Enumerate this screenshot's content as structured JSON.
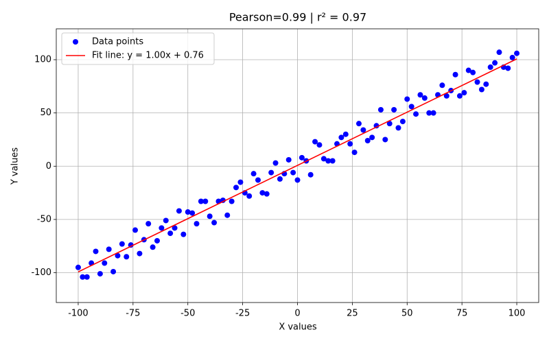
{
  "chart_data": {
    "type": "scatter",
    "title": "Pearson=0.99 | r² = 0.97",
    "xlabel": "X values",
    "ylabel": "Y values",
    "xlim": [
      -110,
      110
    ],
    "ylim": [
      -128,
      129
    ],
    "xticks": [
      -100,
      -75,
      -50,
      -25,
      0,
      25,
      50,
      75,
      100
    ],
    "yticks": [
      -100,
      -50,
      0,
      50,
      100
    ],
    "grid": true,
    "legend": "upper left",
    "series": [
      {
        "name": "Data points",
        "type": "scatter",
        "color": "#0000ff",
        "x": [
          -100,
          -96,
          -92,
          -88,
          -84,
          -80,
          -76,
          -72,
          -68,
          -64,
          -60,
          -56,
          -52,
          -48,
          -44,
          -40,
          -36,
          -32,
          -28,
          -24,
          -20,
          -16,
          -12,
          -8,
          -4,
          0,
          4,
          8,
          12,
          16,
          20,
          24,
          28,
          32,
          36,
          40,
          44,
          48,
          52,
          56,
          60,
          64,
          68,
          72,
          76,
          80,
          84,
          88,
          92,
          96,
          100,
          -98,
          -94,
          -90,
          -86,
          -82,
          -78,
          -74,
          -70,
          -66,
          -62,
          -58,
          -54,
          -50,
          -46,
          -42,
          -38,
          -34,
          -30,
          -26,
          -22,
          -18,
          -14,
          -10,
          -6,
          -2,
          2,
          6,
          10,
          14,
          18,
          22,
          26,
          30,
          34,
          38,
          42,
          46,
          50,
          54,
          58,
          62,
          66,
          70,
          74,
          78,
          82,
          86,
          90,
          94,
          98
        ],
        "values": [
          -95,
          -104,
          -80,
          -91,
          -99,
          -73,
          -74,
          -82,
          -54,
          -70,
          -51,
          -58,
          -64,
          -44,
          -33,
          -47,
          -33,
          -46,
          -20,
          -25,
          -7,
          -25,
          -6,
          -12,
          6,
          -13,
          5,
          23,
          7,
          5,
          27,
          21,
          40,
          24,
          38,
          25,
          53,
          42,
          56,
          67,
          50,
          67,
          66,
          86,
          69,
          88,
          72,
          93,
          107,
          92,
          106,
          -104,
          -91,
          -101,
          -78,
          -84,
          -85,
          -60,
          -69,
          -76,
          -58,
          -63,
          -42,
          -43,
          -54,
          -33,
          -53,
          -32,
          -33,
          -15,
          -28,
          -13,
          -26,
          3,
          -7,
          -6,
          8,
          -8,
          20,
          5,
          21,
          30,
          13,
          34,
          27,
          53,
          40,
          36,
          63,
          49,
          64,
          50,
          76,
          71,
          66,
          90,
          79,
          77,
          97,
          93,
          102
        ]
      },
      {
        "name": "Fit line: y = 1.00x + 0.76",
        "type": "line",
        "color": "#ff0000",
        "x": [
          -100,
          100
        ],
        "values": [
          -99.24,
          100.76
        ]
      }
    ]
  }
}
